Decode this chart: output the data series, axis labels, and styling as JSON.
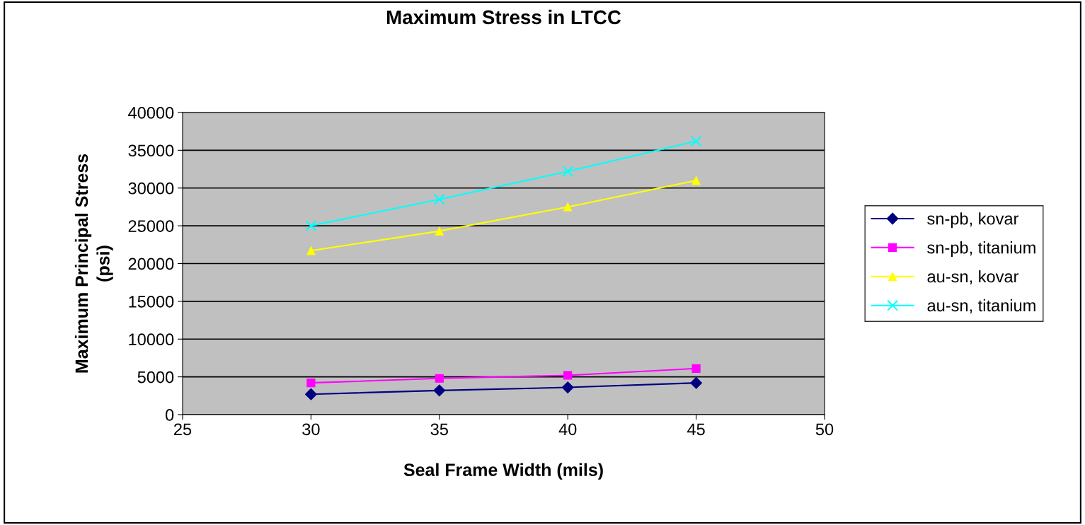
{
  "chart_data": {
    "type": "line",
    "title": "Maximum Stress in LTCC",
    "xlabel": "Seal Frame Width (mils)",
    "ylabel": "Maximum Principal Stress\n(psi)",
    "x": [
      30,
      35,
      40,
      45
    ],
    "series": [
      {
        "name": "sn-pb, kovar",
        "color": "#000080",
        "marker": "diamond",
        "values": [
          2700,
          3200,
          3600,
          4200
        ]
      },
      {
        "name": "sn-pb, titanium",
        "color": "#ff00ff",
        "marker": "square",
        "values": [
          4200,
          4800,
          5200,
          6100
        ]
      },
      {
        "name": "au-sn, kovar",
        "color": "#ffff00",
        "marker": "triangle",
        "values": [
          21700,
          24300,
          27500,
          31000
        ]
      },
      {
        "name": "au-sn, titanium",
        "color": "#00ffff",
        "marker": "cross",
        "values": [
          25000,
          28500,
          32200,
          36200
        ]
      }
    ],
    "xlim": [
      25,
      50
    ],
    "xticks": [
      25,
      30,
      35,
      40,
      45,
      50
    ],
    "ylim": [
      0,
      40000
    ],
    "yticks": [
      0,
      5000,
      10000,
      15000,
      20000,
      25000,
      30000,
      35000,
      40000
    ],
    "grid": "y",
    "legend": "right",
    "line_style": "solid"
  }
}
